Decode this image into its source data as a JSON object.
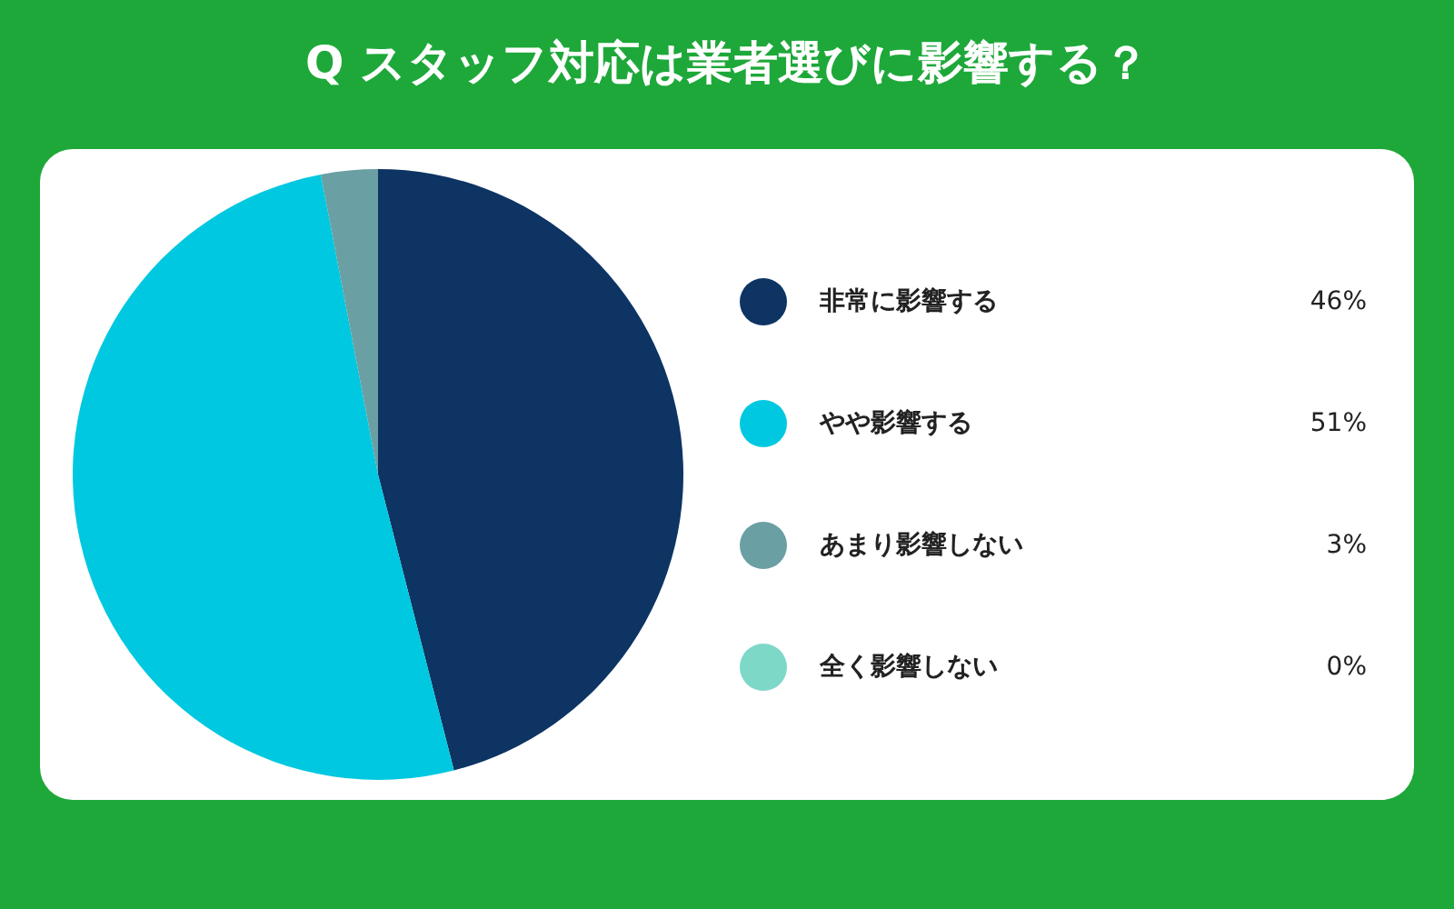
{
  "chart_data": {
    "type": "pie",
    "title": "Q スタッフ対応は業者選びに影響する？",
    "categories": [
      "非常に影響する",
      "やや影響する",
      "あまり影響しない",
      "全く影響しない"
    ],
    "values": [
      46,
      51,
      3,
      0
    ],
    "value_labels": [
      "46%",
      "51%",
      "3%",
      "0%"
    ],
    "colors": [
      "#0d3463",
      "#00c8e0",
      "#6a9fa3",
      "#7dd8c8"
    ],
    "legend": "right"
  }
}
